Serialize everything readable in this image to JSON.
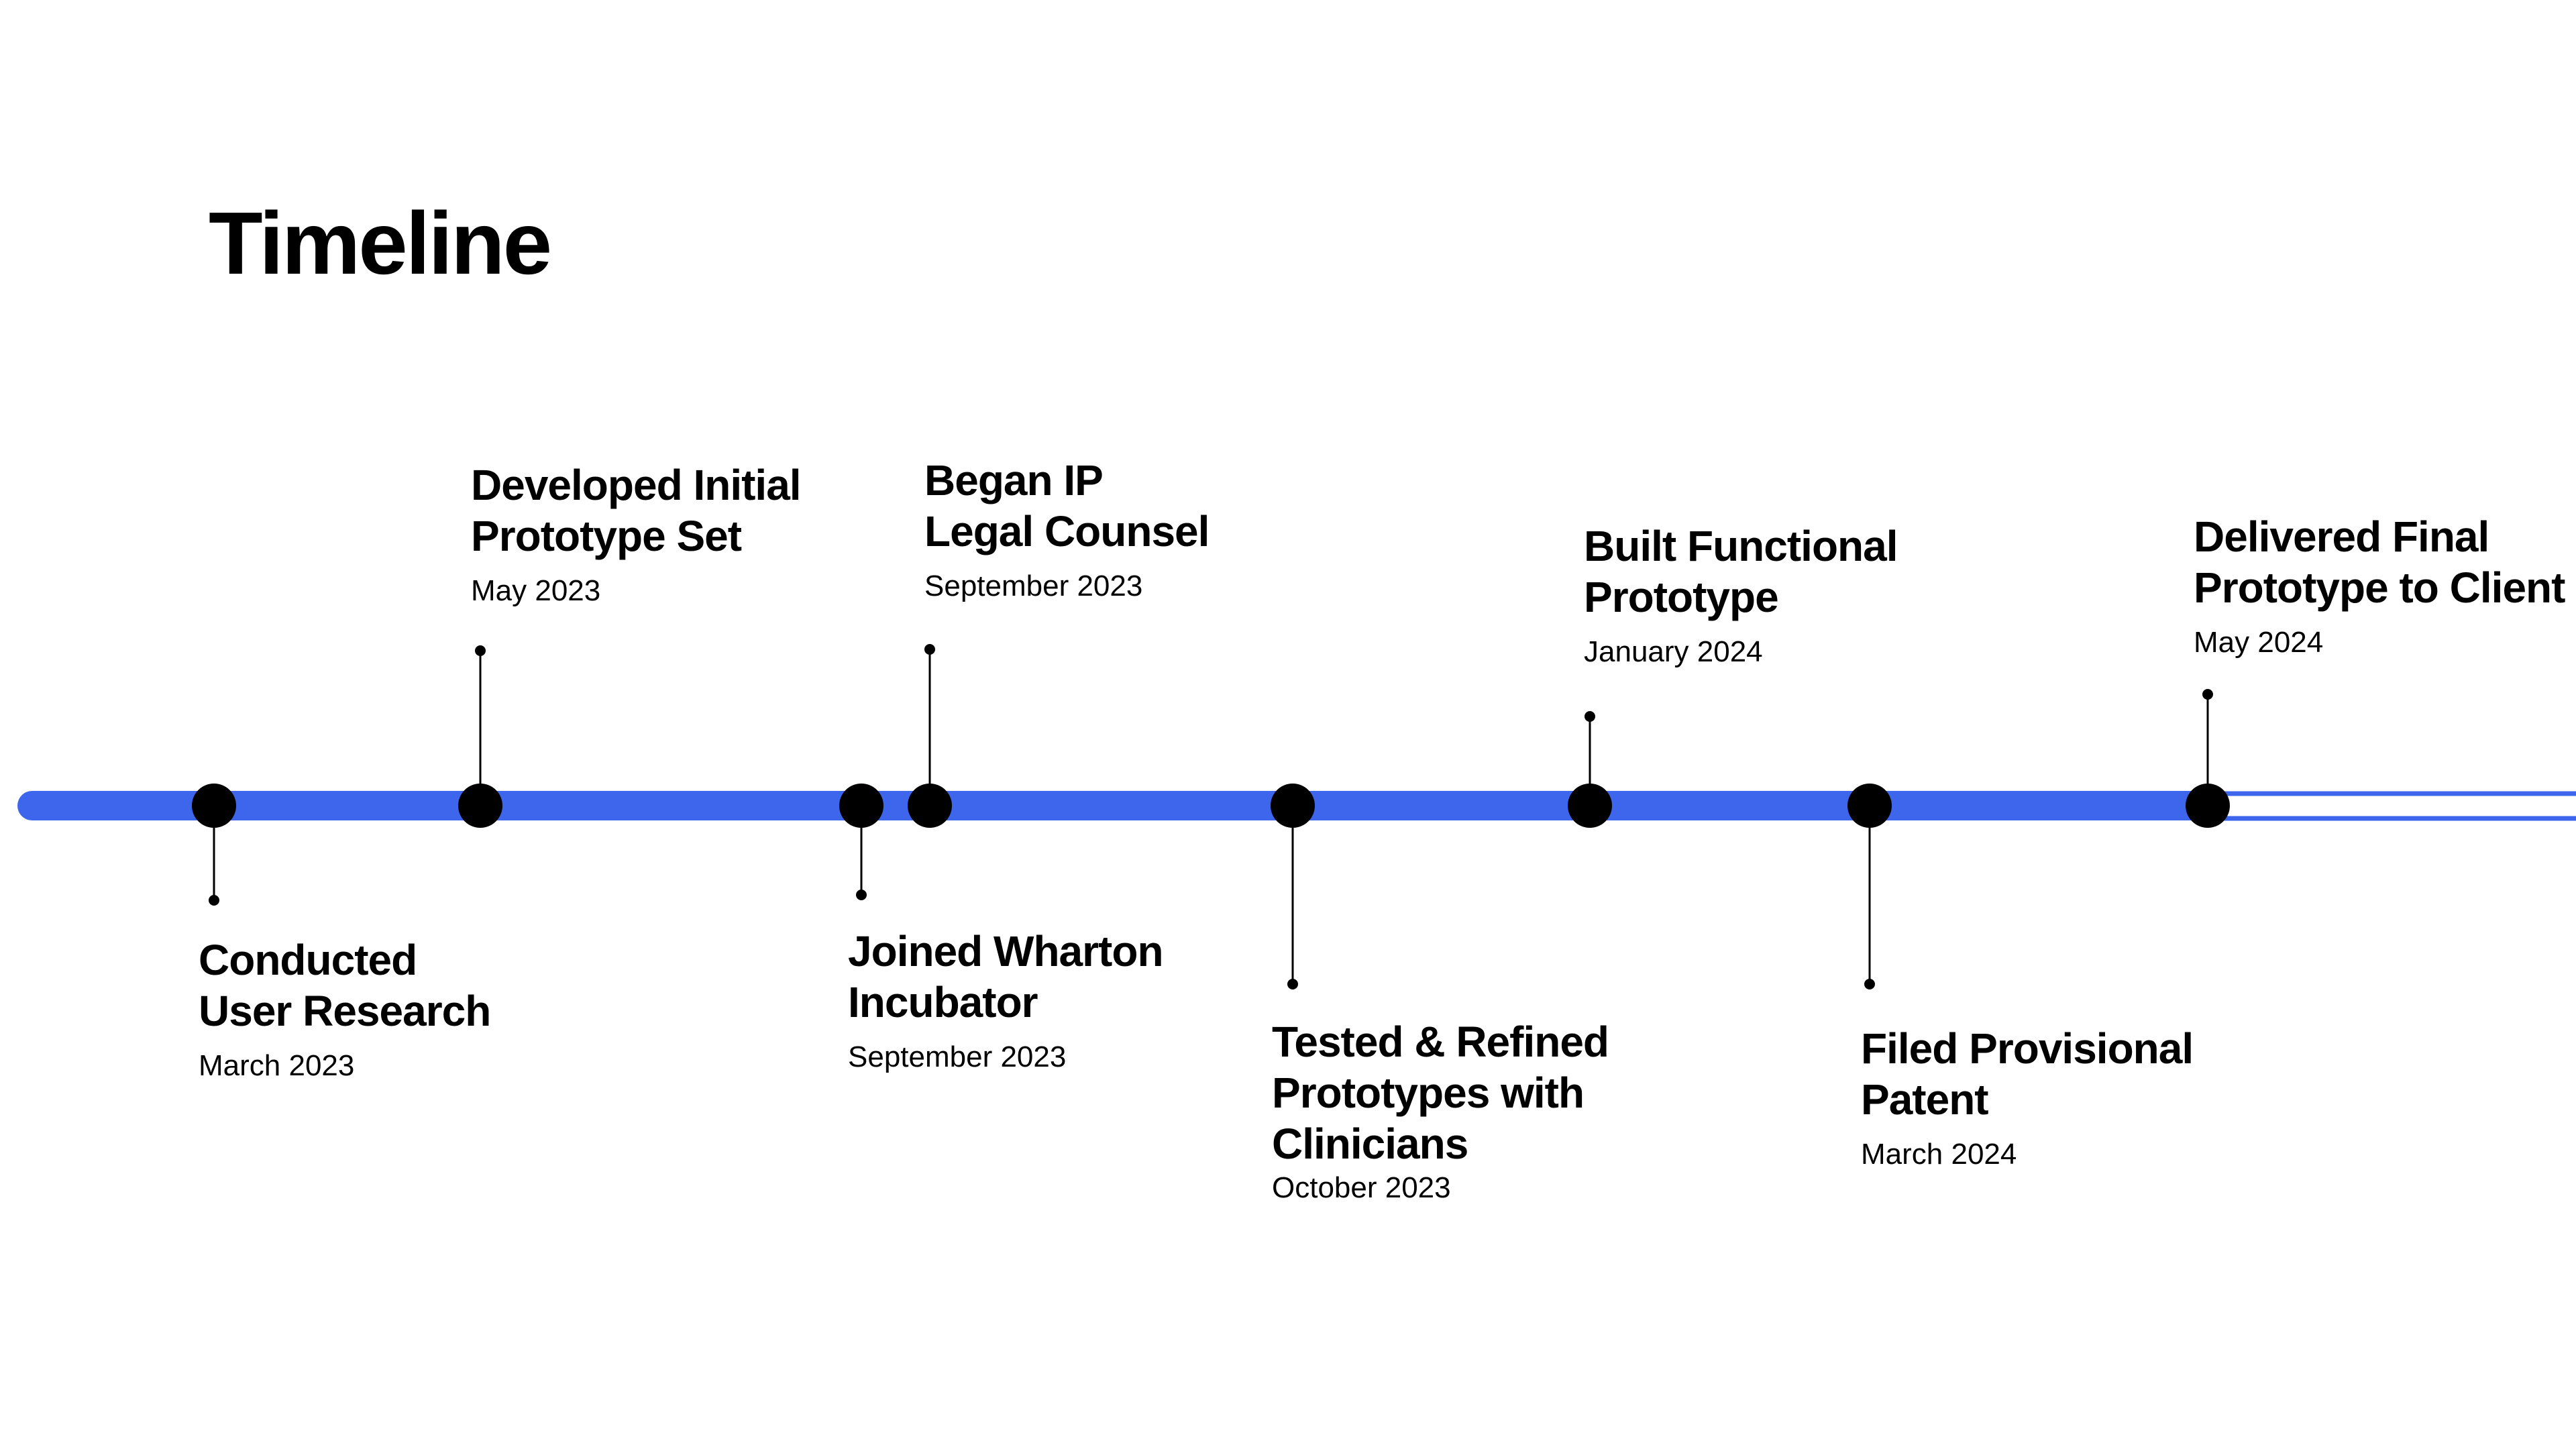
{
  "page": {
    "title": "Timeline"
  },
  "colors": {
    "track": "#3d66ec",
    "milestone": "#000000",
    "connector": "#000000",
    "background": "#ffffff"
  },
  "events": [
    {
      "title": "Conducted\nUser Research",
      "date": "March 2023",
      "side": "below"
    },
    {
      "title": "Developed Initial\nPrototype Set",
      "date": "May 2023",
      "side": "above"
    },
    {
      "title": "Joined Wharton\nIncubator",
      "date": "September 2023",
      "side": "below"
    },
    {
      "title": "Began IP\nLegal Counsel",
      "date": "September 2023",
      "side": "above"
    },
    {
      "title": "Tested & Refined\nPrototypes with\nClinicians",
      "date": "October 2023",
      "side": "below"
    },
    {
      "title": "Built Functional\nPrototype",
      "date": "January 2024",
      "side": "above"
    },
    {
      "title": "Filed Provisional\nPatent",
      "date": "March 2024",
      "side": "below"
    },
    {
      "title": "Delivered Final\nPrototype to Client",
      "date": "May 2024",
      "side": "above"
    }
  ]
}
